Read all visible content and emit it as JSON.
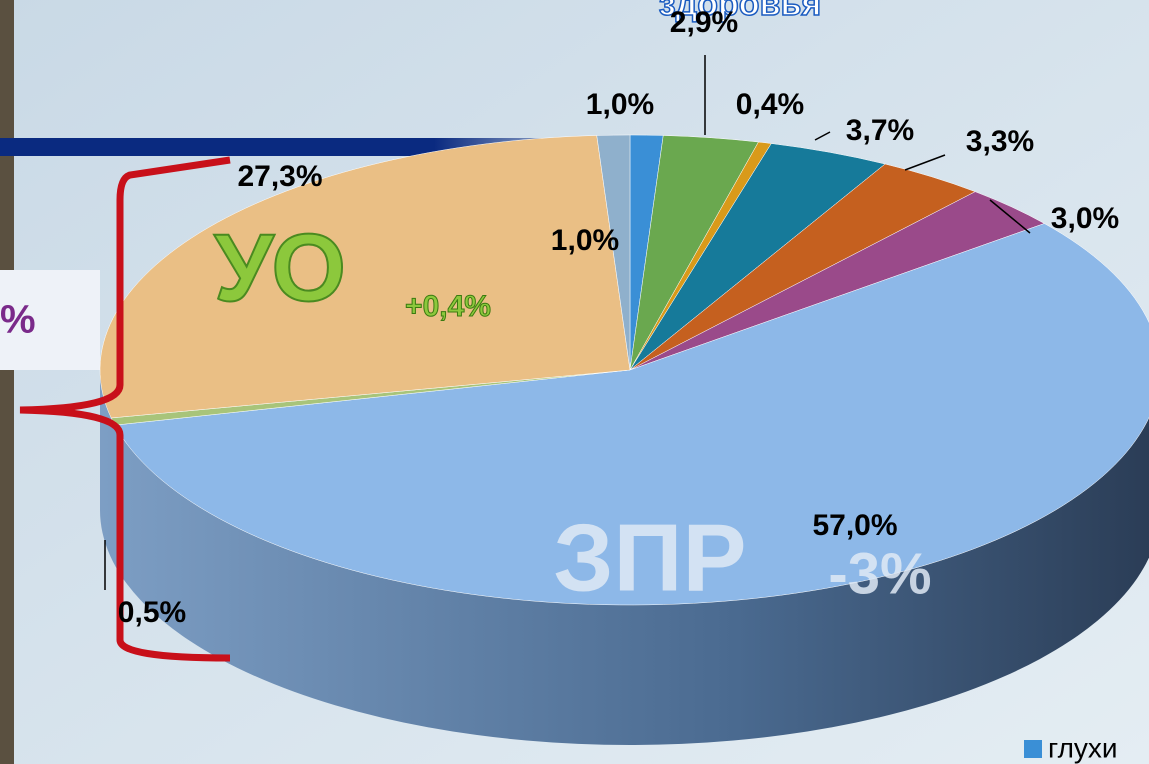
{
  "chart_data": {
    "type": "pie",
    "values": [
      1.0,
      2.9,
      0.4,
      3.7,
      3.3,
      3.0,
      57.0,
      0.5,
      27.3,
      1.0
    ],
    "value_labels": [
      "1,0%",
      "2,9%",
      "0,4%",
      "3,7%",
      "3,3%",
      "3,0%",
      "57,0%",
      "0,5%",
      "27,3%",
      "1,0%"
    ],
    "colors": [
      "#3a8fd6",
      "#6aa84f",
      "#d99a1a",
      "#167a9a",
      "#c5601f",
      "#9a4a8a",
      "#8db8e8",
      "#a8c47a",
      "#eabf85",
      "#8fb0cc"
    ],
    "annotations": {
      "top": "здоровья",
      "uo": "УО",
      "uo_change": "+0,4%",
      "zpr": "ЗПР",
      "zpr_change": "-3%",
      "left_box": "%"
    },
    "legend": [
      {
        "name": "глухи",
        "color": "#3a8fd6"
      }
    ]
  }
}
